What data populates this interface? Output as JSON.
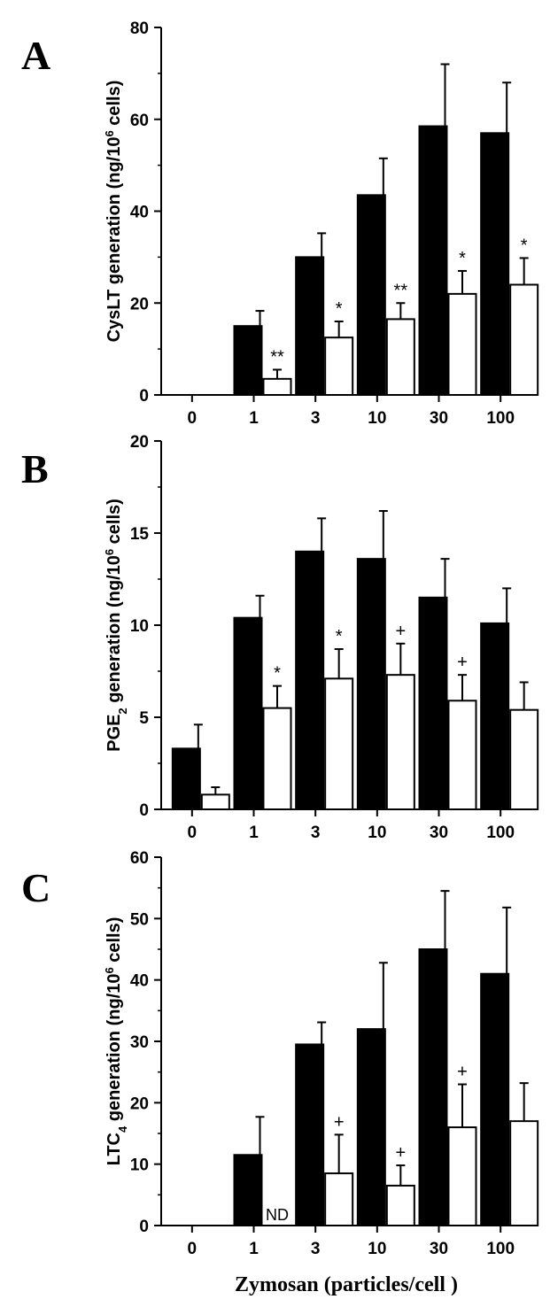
{
  "figure": {
    "xlabel": "Zymosan (particles/cell )"
  },
  "chart_data": [
    {
      "type": "bar",
      "panel": "A",
      "ylabel": "CysLT generation (ng/10^6 cells)",
      "ylabel_parts": {
        "pre": "CysLT generation (ng/10",
        "sup": "6",
        "sub": "",
        "post": " cells)"
      },
      "categories": [
        "0",
        "1",
        "3",
        "10",
        "30",
        "100"
      ],
      "ylim": [
        0,
        80
      ],
      "yticks": [
        "0",
        "20",
        "40",
        "60",
        "80"
      ],
      "ytick_values": [
        0,
        20,
        40,
        60,
        80
      ],
      "series": [
        {
          "name": "",
          "color": "#000000",
          "values": [
            0,
            15,
            30,
            43.5,
            58.5,
            57
          ],
          "errors": [
            0,
            3.3,
            5.2,
            8,
            13.5,
            11
          ]
        },
        {
          "name": "",
          "color": "#ffffff",
          "values": [
            0,
            3.5,
            12.5,
            16.5,
            22,
            24
          ],
          "errors": [
            0,
            2,
            3.5,
            3.5,
            5,
            5.8
          ]
        }
      ],
      "annotations": [
        "",
        "**",
        "*",
        "**",
        "*",
        "*"
      ]
    },
    {
      "type": "bar",
      "panel": "B",
      "ylabel": "PGE2 generation (ng/10^6 cells)",
      "ylabel_parts": {
        "pre": "PGE",
        "sub": "2",
        "mid": " generation (ng/10",
        "sup": "6",
        "post": " cells)"
      },
      "categories": [
        "0",
        "1",
        "3",
        "10",
        "30",
        "100"
      ],
      "ylim": [
        0,
        20
      ],
      "yticks": [
        "0",
        "5",
        "10",
        "15",
        "20"
      ],
      "ytick_values": [
        0,
        5,
        10,
        15,
        20
      ],
      "series": [
        {
          "name": "",
          "color": "#000000",
          "values": [
            3.3,
            10.4,
            14,
            13.6,
            11.5,
            10.1
          ],
          "errors": [
            1.3,
            1.2,
            1.8,
            2.6,
            2.1,
            1.9
          ]
        },
        {
          "name": "",
          "color": "#ffffff",
          "values": [
            0.8,
            5.5,
            7.1,
            7.3,
            5.9,
            5.4
          ],
          "errors": [
            0.4,
            1.2,
            1.6,
            1.7,
            1.4,
            1.5
          ]
        }
      ],
      "annotations": [
        "",
        "*",
        "*",
        "+",
        "+",
        ""
      ]
    },
    {
      "type": "bar",
      "panel": "C",
      "ylabel": "LTC4 generation (ng/10^6 cells)",
      "ylabel_parts": {
        "pre": "LTC",
        "sub": "4",
        "mid": " generation (ng/10",
        "sup": "6",
        "post": " cells)"
      },
      "categories": [
        "0",
        "1",
        "3",
        "10",
        "30",
        "100"
      ],
      "ylim": [
        0,
        60
      ],
      "yticks": [
        "0",
        "10",
        "20",
        "30",
        "40",
        "50",
        "60"
      ],
      "ytick_values": [
        0,
        10,
        20,
        30,
        40,
        50,
        60
      ],
      "series": [
        {
          "name": "",
          "color": "#000000",
          "values": [
            0,
            11.5,
            29.5,
            32,
            45,
            41
          ],
          "errors": [
            0,
            6.2,
            3.6,
            10.8,
            9.5,
            10.8
          ]
        },
        {
          "name": "",
          "color": "#ffffff",
          "values": [
            0,
            0,
            8.5,
            6.5,
            16,
            17
          ],
          "errors": [
            0,
            0,
            6.3,
            3.3,
            7,
            6.2
          ]
        }
      ],
      "annotations": [
        "",
        "",
        "+",
        "+",
        "+",
        ""
      ],
      "nd_label": "ND"
    }
  ]
}
